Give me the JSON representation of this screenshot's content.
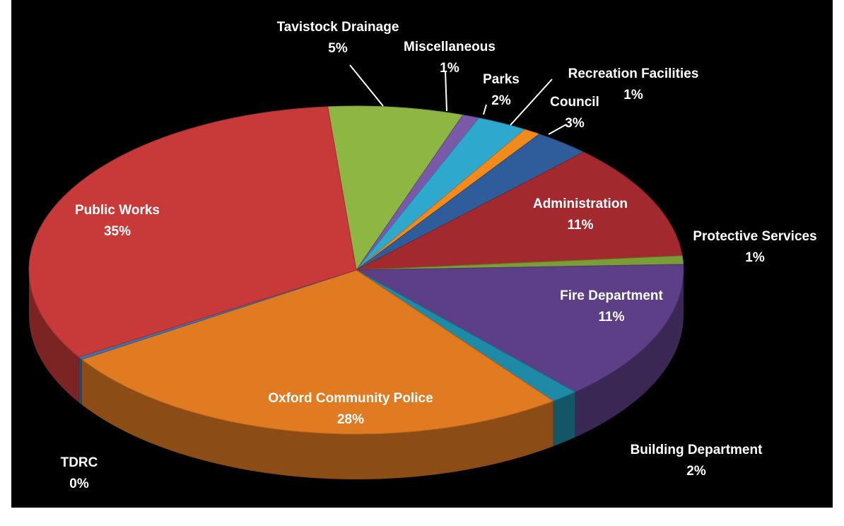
{
  "chart_data": {
    "type": "pie",
    "style": "3d-exploded-oval",
    "slices": [
      {
        "label": "Tavistock Drainage",
        "value": 5,
        "value_text": "5%",
        "color": "#8db742"
      },
      {
        "label": "Miscellaneous",
        "value": 1,
        "value_text": "1%",
        "color": "#7a5aa8"
      },
      {
        "label": "Parks",
        "value": 2,
        "value_text": "2%",
        "color": "#2ea8cc"
      },
      {
        "label": "Recreation Facilities",
        "value": 1,
        "value_text": "1%",
        "color": "#f28a1c"
      },
      {
        "label": "Council",
        "value": 3,
        "value_text": "3%",
        "color": "#2f5c9a"
      },
      {
        "label": "Administration",
        "value": 11,
        "value_text": "11%",
        "color": "#a22a2e"
      },
      {
        "label": "Protective Services",
        "value": 1,
        "value_text": "1%",
        "color": "#7a9e35"
      },
      {
        "label": "Fire Department",
        "value": 11,
        "value_text": "11%",
        "color": "#5d3f88"
      },
      {
        "label": "Building Department",
        "value": 2,
        "value_text": "2%",
        "color": "#1f8aa6"
      },
      {
        "label": "Oxford Community Police",
        "value": 28,
        "value_text": "28%",
        "color": "#e07b22"
      },
      {
        "label": "TDRC",
        "value": 0,
        "value_text": "0%",
        "color": "#4a6fa5"
      },
      {
        "label": "Public Works",
        "value": 35,
        "value_text": "35%",
        "color": "#c83a3a"
      }
    ],
    "background": "#000000",
    "label_color": "#ffffff"
  }
}
